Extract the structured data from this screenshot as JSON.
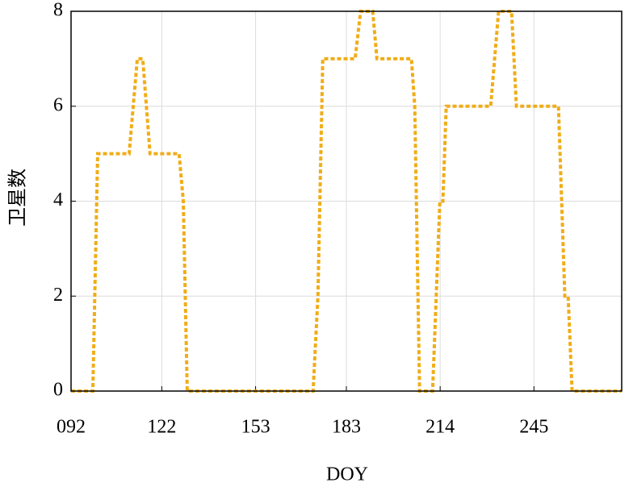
{
  "chart_data": {
    "type": "line",
    "xlabel": "DOY",
    "ylabel": "卫星数",
    "x": [
      92,
      99.2,
      100.8,
      111.2,
      113.9,
      115.7,
      118.1,
      127.7,
      129.1,
      130.4,
      172,
      173.6,
      175.2,
      185.9,
      187.7,
      191.7,
      193.1,
      204.5,
      205.6,
      207.2,
      211.5,
      213.9,
      214.9,
      216,
      230.7,
      233.3,
      237.6,
      239.2,
      253.1,
      255.2,
      256.3,
      257.6,
      273.9
    ],
    "series": [
      {
        "color": "#f0ad18",
        "values": [
          0,
          0,
          5,
          5,
          7,
          7,
          5,
          5,
          4,
          0,
          0,
          2,
          7,
          7,
          8,
          8,
          7,
          7,
          6,
          0,
          0,
          4,
          4,
          6,
          6,
          8,
          8,
          6,
          6,
          2,
          2,
          0,
          0
        ]
      }
    ],
    "xlim": [
      92,
      274
    ],
    "xticks": [
      {
        "value": 92,
        "label": "092"
      },
      122,
      153,
      183,
      214,
      245
    ],
    "ylim": [
      0,
      8
    ],
    "yticks": [
      0,
      2,
      4,
      6,
      8
    ],
    "grid": true
  }
}
